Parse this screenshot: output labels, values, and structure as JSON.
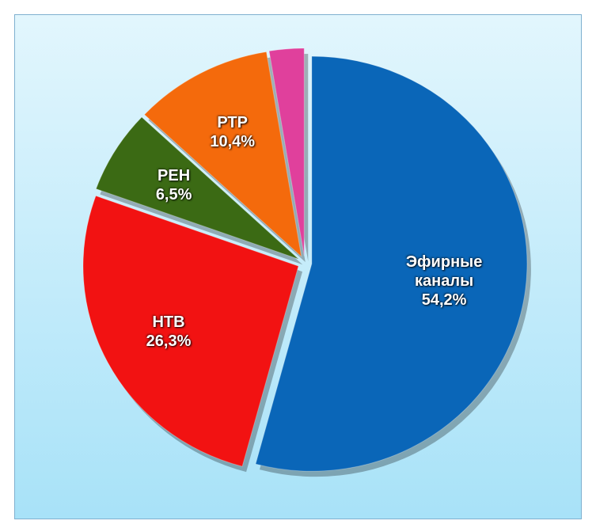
{
  "chart_data": {
    "type": "pie",
    "categories": [
      "Эфирные каналы",
      "НТВ",
      "РЕН",
      "РТР",
      null
    ],
    "values": [
      54.2,
      26.3,
      6.5,
      10.4,
      2.6
    ],
    "value_labels": [
      "54,2%",
      "26,3%",
      "6,5%",
      "10,4%",
      null
    ],
    "colors": [
      "#0a66b8",
      "#f21212",
      "#3b6a14",
      "#f46a0c",
      "#e0409c"
    ]
  }
}
